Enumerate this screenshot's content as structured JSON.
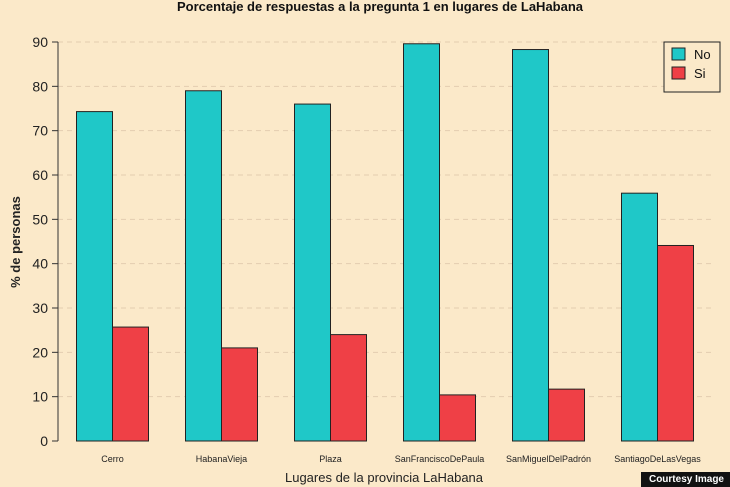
{
  "chart_data": {
    "type": "bar",
    "title": "Porcentaje de respuestas a la pregunta 1 en lugares de LaHabana",
    "xlabel": "Lugares de la provincia LaHabana",
    "ylabel": "% de personas",
    "ylim": [
      0,
      90
    ],
    "yticks": [
      0,
      10,
      20,
      30,
      40,
      50,
      60,
      70,
      80,
      90
    ],
    "grid": "horizontal dashed",
    "legend_position": "top-right",
    "categories": [
      "Cerro",
      "HabanaVieja",
      "Plaza",
      "SanFranciscoDePaula",
      "SanMiguelDelPadrón",
      "SantiagoDeLasVegas"
    ],
    "series": [
      {
        "name": "No",
        "color": "#1fc8c8",
        "values": [
          74.3,
          79.0,
          76.0,
          89.6,
          88.3,
          55.9
        ]
      },
      {
        "name": "Si",
        "color": "#ef4046",
        "values": [
          25.7,
          21.0,
          24.0,
          10.4,
          11.7,
          44.1
        ]
      }
    ]
  },
  "credit": "Courtesy Image"
}
